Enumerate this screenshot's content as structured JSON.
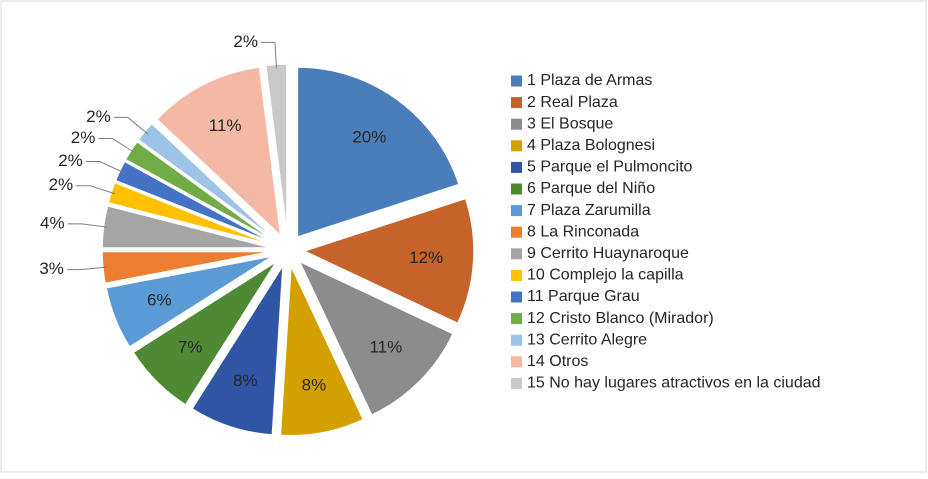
{
  "chart_data": {
    "type": "pie",
    "categories": [
      "1 Plaza de Armas",
      "2 Real Plaza",
      "3 El Bosque",
      "4 Plaza Bolognesi",
      "5 Parque el Pulmoncito",
      "6 Parque del Niño",
      "7 Plaza Zarumilla",
      "8 La Rinconada",
      "9 Cerrito Huaynaroque",
      "10 Complejo la capilla",
      "11 Parque Grau",
      "12 Cristo Blanco (Mirador)",
      "13 Cerrito Alegre",
      "14 Otros",
      "15 No hay lugares atractivos en la ciudad"
    ],
    "values": [
      20,
      12,
      11,
      8,
      8,
      7,
      6,
      3,
      4,
      2,
      2,
      2,
      2,
      11,
      2
    ],
    "value_labels": [
      "20%",
      "12%",
      "11%",
      "8%",
      "8%",
      "7%",
      "6%",
      "3%",
      "4%",
      "2%",
      "2%",
      "2%",
      "2%",
      "11%",
      "2%"
    ],
    "colors": [
      "#4a7ebb",
      "#c5632a",
      "#8c8c8c",
      "#d4a000",
      "#2f55a4",
      "#4e8a34",
      "#5b9bd5",
      "#ed7d31",
      "#a5a5a5",
      "#ffc000",
      "#4472c4",
      "#70ad47",
      "#9dc3e6",
      "#f4b9a5",
      "#c9c9c9"
    ],
    "legend": "right"
  }
}
